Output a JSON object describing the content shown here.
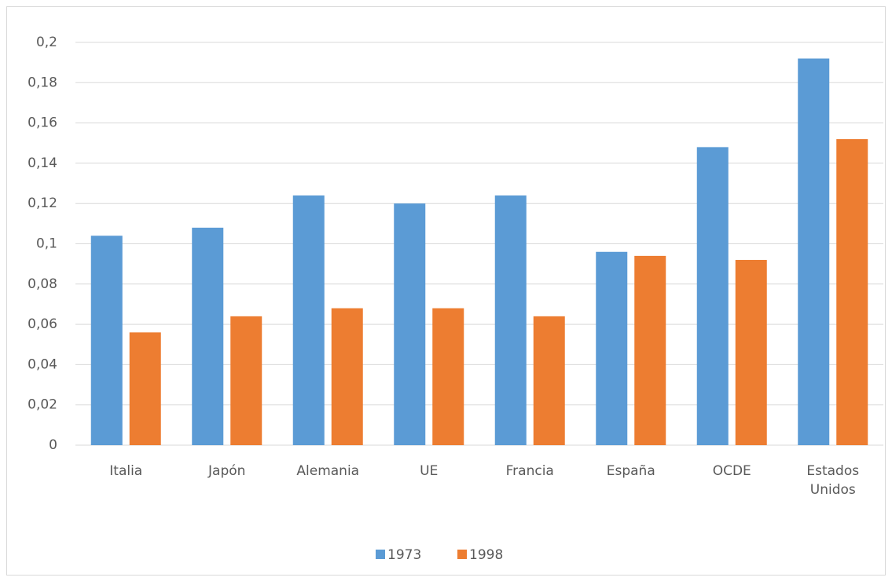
{
  "chart_data": {
    "type": "bar",
    "categories": [
      "Italia",
      "Japón",
      "Alemania",
      "UE",
      "Francia",
      "España",
      "OCDE",
      "Estados Unidos"
    ],
    "series": [
      {
        "name": "1973",
        "color": "#5b9bd5",
        "values": [
          0.104,
          0.108,
          0.124,
          0.12,
          0.124,
          0.096,
          0.148,
          0.192
        ]
      },
      {
        "name": "1998",
        "color": "#ed7d31",
        "values": [
          0.056,
          0.064,
          0.068,
          0.068,
          0.064,
          0.094,
          0.092,
          0.152
        ]
      }
    ],
    "ylim": [
      0,
      0.2
    ],
    "yticks": [
      0,
      {
        "value": 0.02,
        "label": "0,02"
      },
      {
        "value": 0.04,
        "label": "0,04"
      },
      {
        "value": 0.06,
        "label": "0,06"
      },
      {
        "value": 0.08,
        "label": "0,08"
      },
      {
        "value": 0.1,
        "label": "0,1"
      },
      {
        "value": 0.12,
        "label": "0,12"
      },
      {
        "value": 0.14,
        "label": "0,14"
      },
      {
        "value": 0.16,
        "label": "0,16"
      },
      {
        "value": 0.18,
        "label": "0,18"
      },
      {
        "value": 0.2,
        "label": "0,2"
      }
    ],
    "grid": true,
    "legend": "bottom"
  }
}
